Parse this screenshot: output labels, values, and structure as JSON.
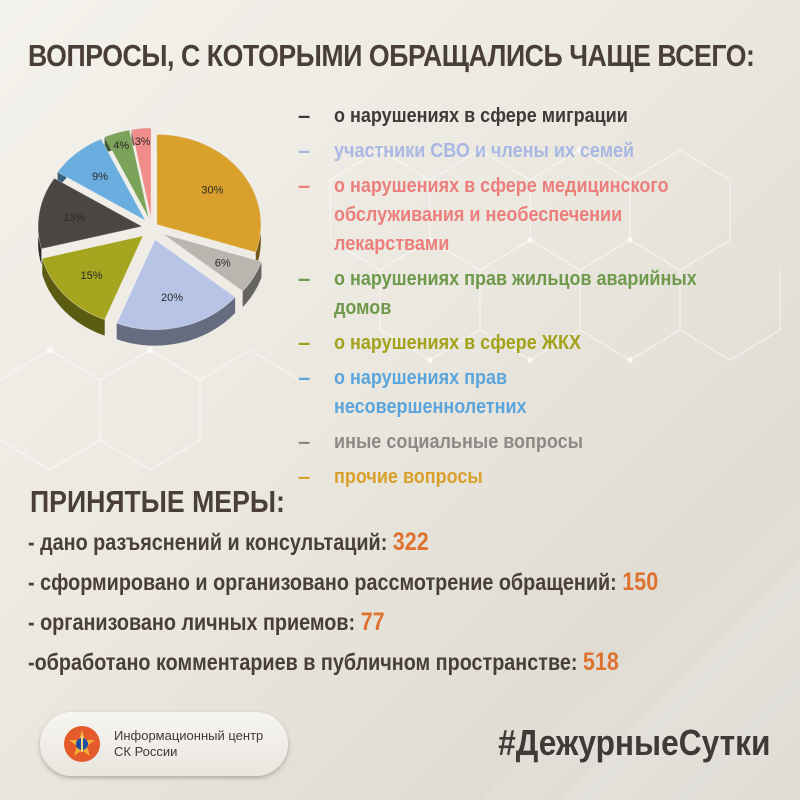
{
  "title": "ВОПРОСЫ, С КОТОРЫМИ ОБРАЩАЛИСЬ ЧАЩЕ ВСЕГО:",
  "chart_data": {
    "type": "pie",
    "slices": [
      {
        "label": "прочие вопросы",
        "value": 30,
        "value_label": "30%",
        "color": "#d9a02b"
      },
      {
        "label": "иные социальные вопросы",
        "value": 6,
        "value_label": "6%",
        "color": "#b9b6b0"
      },
      {
        "label": "участники СВО и члены их семей",
        "value": 20,
        "value_label": "20%",
        "color": "#b7c4e6"
      },
      {
        "label": "о нарушениях в сфере ЖКХ",
        "value": 15,
        "value_label": "15%",
        "color": "#a6a51f"
      },
      {
        "label": "о нарушениях в сфере миграции",
        "value": 13,
        "value_label": "13%",
        "color": "#4a4644"
      },
      {
        "label": "о нарушениях прав несовершеннолетних",
        "value": 9,
        "value_label": "9%",
        "color": "#6aaee0"
      },
      {
        "label": "о нарушениях прав жильцов аварийных домов",
        "value": 4,
        "value_label": "4%",
        "color": "#7ba35a"
      },
      {
        "label": "о нарушениях в сфере медицинского обслуживания и необеспечении лекарствами",
        "value": 3,
        "value_label": "3%",
        "color": "#f08d8a"
      }
    ]
  },
  "legend": [
    {
      "text": "о нарушениях в сфере миграции",
      "color": "#3e3a37"
    },
    {
      "text": "участники СВО и члены их семей",
      "color": "#a9b8e3"
    },
    {
      "text": "о нарушениях в сфере медицинского обслуживания и необеспечении лекарствами",
      "color": "#ec7f7b"
    },
    {
      "text": "о нарушениях прав жильцов аварийных домов",
      "color": "#6f9a4c"
    },
    {
      "text": "о нарушениях в сфере ЖКХ",
      "color": "#a3a21a"
    },
    {
      "text": "о нарушениях прав несовершеннолетних",
      "color": "#5ba5dc"
    },
    {
      "text": "иные социальные вопросы",
      "color": "#8d8985"
    },
    {
      "text": "прочие вопросы",
      "color": "#d9a02b"
    }
  ],
  "measures": {
    "title": "ПРИНЯТЫЕ МЕРЫ:",
    "items": [
      {
        "text": "- дано разъяснений и консультаций: ",
        "value": "322"
      },
      {
        "text": "- сформировано и организовано рассмотрение обращений: ",
        "value": "150"
      },
      {
        "text": "- организовано личных приемов: ",
        "value": "77"
      },
      {
        "text": "-обработано комментариев в публичном пространстве: ",
        "value": "518"
      }
    ]
  },
  "badge": {
    "line1": "Информационный центр",
    "line2": "СК России",
    "icon": "emblem-icon"
  },
  "hashtag": "#ДежурныеСутки",
  "colors": {
    "accent": "#e0722f",
    "text": "#4a3f37"
  }
}
